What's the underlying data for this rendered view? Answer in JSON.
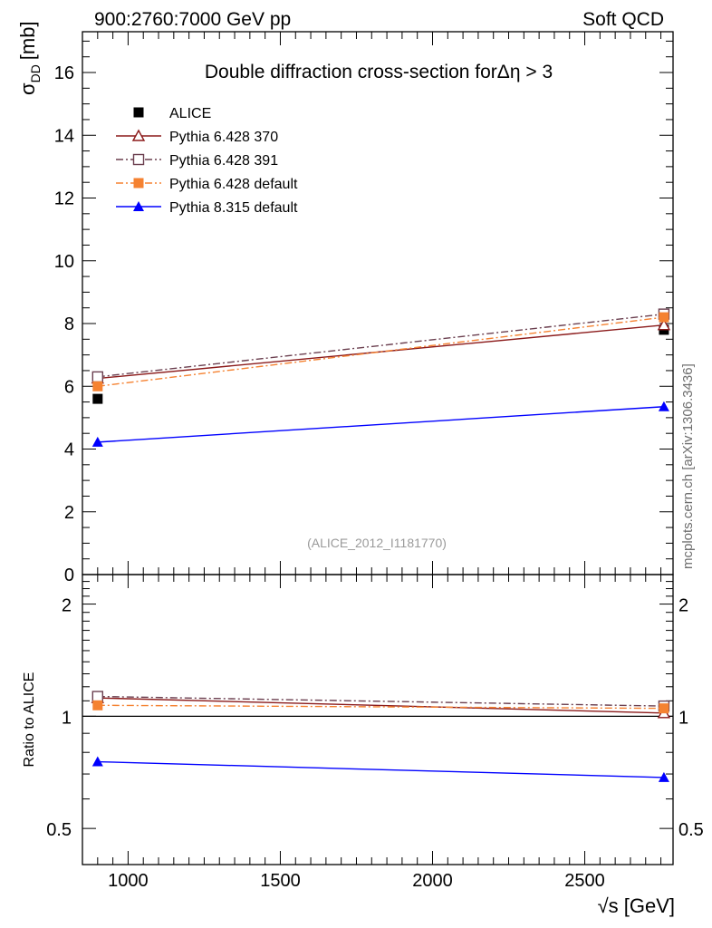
{
  "header": {
    "left": "900:2760:7000 GeV pp",
    "right": "Soft QCD"
  },
  "side_label": "mcplots.cern.ch [arXiv:1306.3436]",
  "chart_data": [
    {
      "type": "line",
      "panel": "main",
      "title": "Double diffraction cross-section forΔη > 3",
      "reference_label": "(ALICE_2012_I1181770)",
      "ylabel_symbol": "σ",
      "ylabel_subscript": "DD",
      "ylabel_unit": "[mb]",
      "xlim": [
        850,
        2790
      ],
      "ylim": [
        0,
        17.3
      ],
      "yticks": [
        0,
        2,
        4,
        6,
        8,
        10,
        12,
        14,
        16
      ],
      "ytick_labels": [
        "0",
        "2",
        "4",
        "6",
        "8",
        "10",
        "12",
        "14",
        "16"
      ],
      "legend_position": "top-left",
      "x": [
        900,
        2760
      ],
      "series": [
        {
          "name": "ALICE",
          "values": [
            5.6,
            7.8
          ],
          "color": "#000000",
          "marker": "square-filled",
          "line": "none"
        },
        {
          "name": "Pythia 6.428 370",
          "values": [
            6.25,
            7.95
          ],
          "color": "#8b1a1a",
          "marker": "triangle-open",
          "line": "solid"
        },
        {
          "name": "Pythia 6.428 391",
          "values": [
            6.3,
            8.3
          ],
          "color": "#6b3f4f",
          "marker": "square-open",
          "line": "dashdot"
        },
        {
          "name": "Pythia 6.428 default",
          "values": [
            6.0,
            8.2
          ],
          "color": "#f58231",
          "marker": "square-filled",
          "line": "dashdot"
        },
        {
          "name": "Pythia 8.315 default",
          "values": [
            4.22,
            5.35
          ],
          "color": "#0000ff",
          "marker": "triangle-filled",
          "line": "solid"
        }
      ]
    },
    {
      "type": "line",
      "panel": "ratio",
      "ylabel": "Ratio to ALICE",
      "xlabel": "√s [GeV]",
      "xlim": [
        850,
        2790
      ],
      "ylim": [
        0.4,
        2.4
      ],
      "yscale": "log",
      "yticks": [
        0.5,
        1,
        2
      ],
      "ytick_labels": [
        "0.5",
        "1",
        "2"
      ],
      "xticks": [
        1000,
        1500,
        2000,
        2500
      ],
      "xtick_labels": [
        "1000",
        "1500",
        "2000",
        "2500"
      ],
      "x": [
        900,
        2760
      ],
      "reference_line": 1,
      "series": [
        {
          "name": "Pythia 6.428 370",
          "values": [
            1.12,
            1.02
          ],
          "color": "#8b1a1a",
          "marker": "triangle-open",
          "line": "solid"
        },
        {
          "name": "Pythia 6.428 391",
          "values": [
            1.13,
            1.065
          ],
          "color": "#6b3f4f",
          "marker": "square-open",
          "line": "dashdot"
        },
        {
          "name": "Pythia 6.428 default",
          "values": [
            1.07,
            1.05
          ],
          "color": "#f58231",
          "marker": "square-filled",
          "line": "dashdot"
        },
        {
          "name": "Pythia 8.315 default",
          "values": [
            0.755,
            0.685
          ],
          "color": "#0000ff",
          "marker": "triangle-filled",
          "line": "solid"
        }
      ]
    }
  ]
}
